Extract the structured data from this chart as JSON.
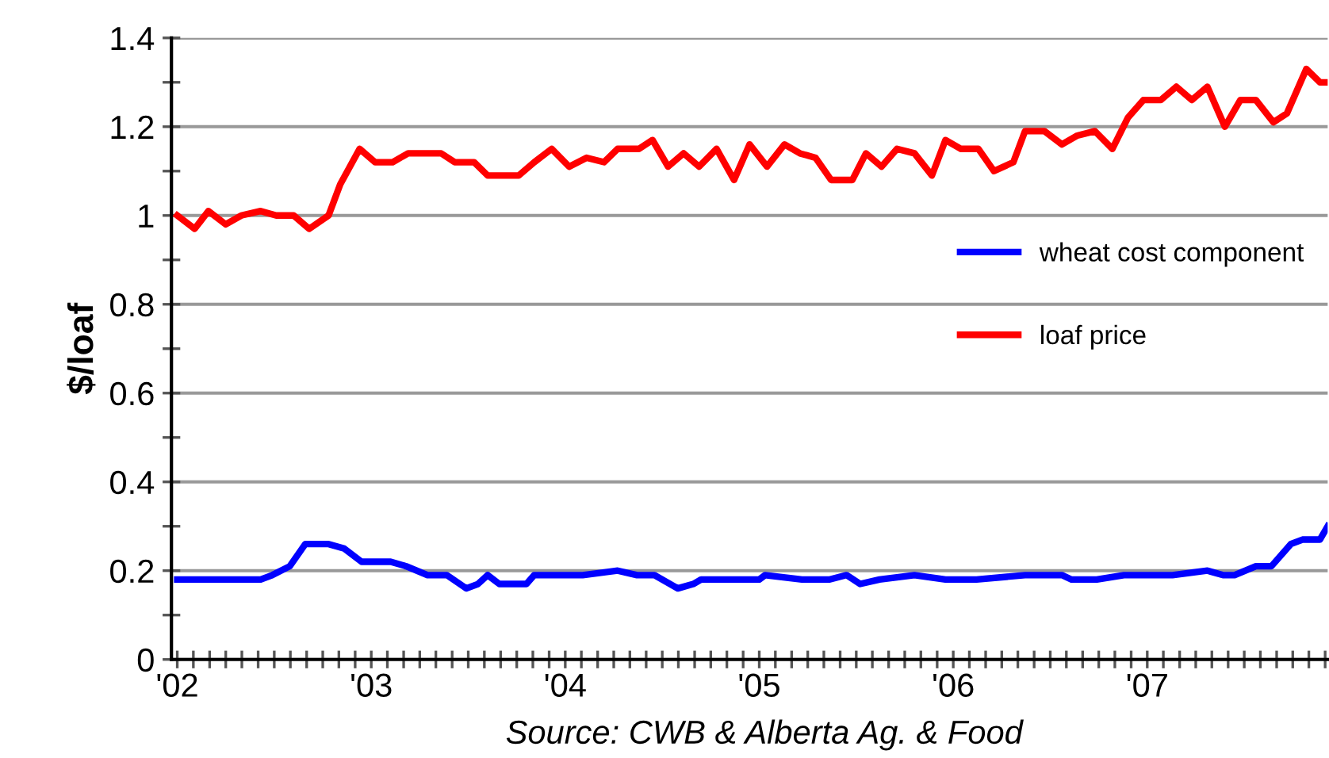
{
  "chart_data": {
    "type": "line",
    "ylabel": "$/loaf",
    "annotations": [
      "Source: CWB & Alberta Ag. & Food"
    ],
    "xlim": [
      2001.97,
      2007.93
    ],
    "xticks": [
      {
        "value": 2002,
        "label": "'02"
      },
      {
        "value": 2002.083,
        "label": null
      },
      {
        "value": 2002.167,
        "label": null
      },
      {
        "value": 2002.25,
        "label": null
      },
      {
        "value": 2002.333,
        "label": null
      },
      {
        "value": 2002.417,
        "label": null
      },
      {
        "value": 2002.5,
        "label": null
      },
      {
        "value": 2002.583,
        "label": null
      },
      {
        "value": 2002.667,
        "label": null
      },
      {
        "value": 2002.75,
        "label": null
      },
      {
        "value": 2002.833,
        "label": null
      },
      {
        "value": 2002.917,
        "label": null
      },
      {
        "value": 2003,
        "label": "'03"
      },
      {
        "value": 2003.083,
        "label": null
      },
      {
        "value": 2003.167,
        "label": null
      },
      {
        "value": 2003.25,
        "label": null
      },
      {
        "value": 2003.333,
        "label": null
      },
      {
        "value": 2003.417,
        "label": null
      },
      {
        "value": 2003.5,
        "label": null
      },
      {
        "value": 2003.583,
        "label": null
      },
      {
        "value": 2003.667,
        "label": null
      },
      {
        "value": 2003.75,
        "label": null
      },
      {
        "value": 2003.833,
        "label": null
      },
      {
        "value": 2003.917,
        "label": null
      },
      {
        "value": 2004,
        "label": "'04"
      },
      {
        "value": 2004.083,
        "label": null
      },
      {
        "value": 2004.167,
        "label": null
      },
      {
        "value": 2004.25,
        "label": null
      },
      {
        "value": 2004.333,
        "label": null
      },
      {
        "value": 2004.417,
        "label": null
      },
      {
        "value": 2004.5,
        "label": null
      },
      {
        "value": 2004.583,
        "label": null
      },
      {
        "value": 2004.667,
        "label": null
      },
      {
        "value": 2004.75,
        "label": null
      },
      {
        "value": 2004.833,
        "label": null
      },
      {
        "value": 2004.917,
        "label": null
      },
      {
        "value": 2005,
        "label": "'05"
      },
      {
        "value": 2005.083,
        "label": null
      },
      {
        "value": 2005.167,
        "label": null
      },
      {
        "value": 2005.25,
        "label": null
      },
      {
        "value": 2005.333,
        "label": null
      },
      {
        "value": 2005.417,
        "label": null
      },
      {
        "value": 2005.5,
        "label": null
      },
      {
        "value": 2005.583,
        "label": null
      },
      {
        "value": 2005.667,
        "label": null
      },
      {
        "value": 2005.75,
        "label": null
      },
      {
        "value": 2005.833,
        "label": null
      },
      {
        "value": 2005.917,
        "label": null
      },
      {
        "value": 2006,
        "label": "'06"
      },
      {
        "value": 2006.083,
        "label": null
      },
      {
        "value": 2006.167,
        "label": null
      },
      {
        "value": 2006.25,
        "label": null
      },
      {
        "value": 2006.333,
        "label": null
      },
      {
        "value": 2006.417,
        "label": null
      },
      {
        "value": 2006.5,
        "label": null
      },
      {
        "value": 2006.583,
        "label": null
      },
      {
        "value": 2006.667,
        "label": null
      },
      {
        "value": 2006.75,
        "label": null
      },
      {
        "value": 2006.833,
        "label": null
      },
      {
        "value": 2006.917,
        "label": null
      },
      {
        "value": 2007,
        "label": "'07"
      },
      {
        "value": 2007.083,
        "label": null
      },
      {
        "value": 2007.167,
        "label": null
      },
      {
        "value": 2007.25,
        "label": null
      },
      {
        "value": 2007.333,
        "label": null
      },
      {
        "value": 2007.417,
        "label": null
      },
      {
        "value": 2007.5,
        "label": null
      },
      {
        "value": 2007.583,
        "label": null
      },
      {
        "value": 2007.667,
        "label": null
      },
      {
        "value": 2007.75,
        "label": null
      },
      {
        "value": 2007.833,
        "label": null
      },
      {
        "value": 2007.917,
        "label": null
      }
    ],
    "ylim": [
      0,
      1.4
    ],
    "yticks": [
      0,
      {
        "value": 0.1,
        "label": null
      },
      0.2,
      {
        "value": 0.3,
        "label": null
      },
      0.4,
      {
        "value": 0.5,
        "label": null
      },
      0.6,
      {
        "value": 0.7,
        "label": null
      },
      0.8,
      {
        "value": 0.9,
        "label": null
      },
      1,
      {
        "value": 1.1,
        "label": null
      },
      1.2,
      {
        "value": 1.3,
        "label": null
      },
      1.4
    ],
    "grid": "y",
    "legend": "right",
    "line_style": "solid",
    "marker": "none",
    "series": [
      {
        "name": "wheat cost component",
        "color": "#0000ff",
        "x": [
          2002.0,
          2002.43,
          2002.49,
          2002.58,
          2002.66,
          2002.78,
          2002.86,
          2002.95,
          2003.1,
          2003.18,
          2003.29,
          2003.39,
          2003.49,
          2003.55,
          2003.6,
          2003.66,
          2003.8,
          2003.84,
          2004.09,
          2004.27,
          2004.37,
          2004.46,
          2004.58,
          2004.66,
          2004.7,
          2005.0,
          2005.03,
          2005.22,
          2005.36,
          2005.45,
          2005.52,
          2005.62,
          2005.8,
          2005.96,
          2006.12,
          2006.37,
          2006.56,
          2006.61,
          2006.74,
          2006.88,
          2007.13,
          2007.31,
          2007.39,
          2007.45,
          2007.56,
          2007.64,
          2007.74,
          2007.8,
          2007.89,
          2007.93
        ],
        "values": [
          0.18,
          0.18,
          0.19,
          0.21,
          0.26,
          0.26,
          0.25,
          0.22,
          0.22,
          0.21,
          0.19,
          0.19,
          0.16,
          0.17,
          0.19,
          0.17,
          0.17,
          0.19,
          0.19,
          0.2,
          0.19,
          0.19,
          0.16,
          0.17,
          0.18,
          0.18,
          0.19,
          0.18,
          0.18,
          0.19,
          0.17,
          0.18,
          0.19,
          0.18,
          0.18,
          0.19,
          0.19,
          0.18,
          0.18,
          0.19,
          0.19,
          0.2,
          0.19,
          0.19,
          0.21,
          0.21,
          0.26,
          0.27,
          0.27,
          0.3
        ]
      },
      {
        "name": "loaf price",
        "color": "#ff0000",
        "x": [
          2002.0,
          2002.09,
          2002.16,
          2002.25,
          2002.33,
          2002.43,
          2002.51,
          2002.6,
          2002.68,
          2002.78,
          2002.84,
          2002.94,
          2003.02,
          2003.11,
          2003.19,
          2003.36,
          2003.43,
          2003.53,
          2003.6,
          2003.76,
          2003.84,
          2003.93,
          2004.02,
          2004.11,
          2004.2,
          2004.27,
          2004.38,
          2004.45,
          2004.53,
          2004.61,
          2004.69,
          2004.78,
          2004.87,
          2004.95,
          2005.04,
          2005.13,
          2005.21,
          2005.29,
          2005.37,
          2005.48,
          2005.55,
          2005.63,
          2005.71,
          2005.8,
          2005.89,
          2005.96,
          2006.04,
          2006.13,
          2006.21,
          2006.31,
          2006.37,
          2006.47,
          2006.56,
          2006.64,
          2006.73,
          2006.82,
          2006.9,
          2006.98,
          2007.07,
          2007.15,
          2007.23,
          2007.31,
          2007.4,
          2007.48,
          2007.56,
          2007.65,
          2007.72,
          2007.82,
          2007.89,
          2007.93
        ],
        "values": [
          1.0,
          0.97,
          1.01,
          0.98,
          1.0,
          1.01,
          1.0,
          1.0,
          0.97,
          1.0,
          1.07,
          1.15,
          1.12,
          1.12,
          1.14,
          1.14,
          1.12,
          1.12,
          1.09,
          1.09,
          1.12,
          1.15,
          1.11,
          1.13,
          1.12,
          1.15,
          1.15,
          1.17,
          1.11,
          1.14,
          1.11,
          1.15,
          1.08,
          1.16,
          1.11,
          1.16,
          1.14,
          1.13,
          1.08,
          1.08,
          1.14,
          1.11,
          1.15,
          1.14,
          1.09,
          1.17,
          1.15,
          1.15,
          1.1,
          1.12,
          1.19,
          1.19,
          1.16,
          1.18,
          1.19,
          1.15,
          1.22,
          1.26,
          1.26,
          1.29,
          1.26,
          1.29,
          1.2,
          1.26,
          1.26,
          1.21,
          1.23,
          1.33,
          1.3,
          1.3
        ]
      }
    ]
  }
}
